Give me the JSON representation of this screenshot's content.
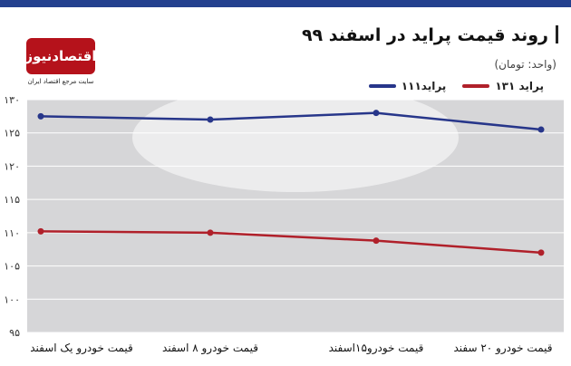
{
  "header": {
    "title": "روند قیمت پراید در اسفند ۹۹",
    "subtitle": "(واحد: تومان)"
  },
  "logo": {
    "name": "اقتصادنیوز",
    "tagline": "سایت مرجع اقتصاد ایران"
  },
  "colors": {
    "top_bar": "#23408e",
    "logo_red": "#b5121b",
    "series_111": "#27368a",
    "series_131": "#b0202a",
    "plot_bg": "#d6d6d8",
    "grid": "#ffffff"
  },
  "chart_data": {
    "type": "line",
    "title": "روند قیمت پراید در اسفند ۹۹",
    "subtitle": "(واحد: تومان)",
    "categories": [
      "قیمت خودرو یک اسفند",
      "قیمت خودرو ۸ اسفند",
      "قیمت خودرو۱۵اسفند",
      "قیمت خودرو ۲۰ سفند"
    ],
    "series": [
      {
        "name": "پراید۱۱۱",
        "values": [
          127.5,
          127,
          128,
          125.5
        ]
      },
      {
        "name": "پراید ۱۳۱",
        "values": [
          110.2,
          110,
          108.8,
          107
        ]
      }
    ],
    "yticks": [
      "۹۵",
      "۱۰۰",
      "۱۰۵",
      "۱۱۰",
      "۱۱۵",
      "۱۲۰",
      "۱۲۵",
      "۱۳۰"
    ],
    "ylim": [
      95,
      130
    ],
    "grid": true,
    "legend_position": "top-right"
  }
}
